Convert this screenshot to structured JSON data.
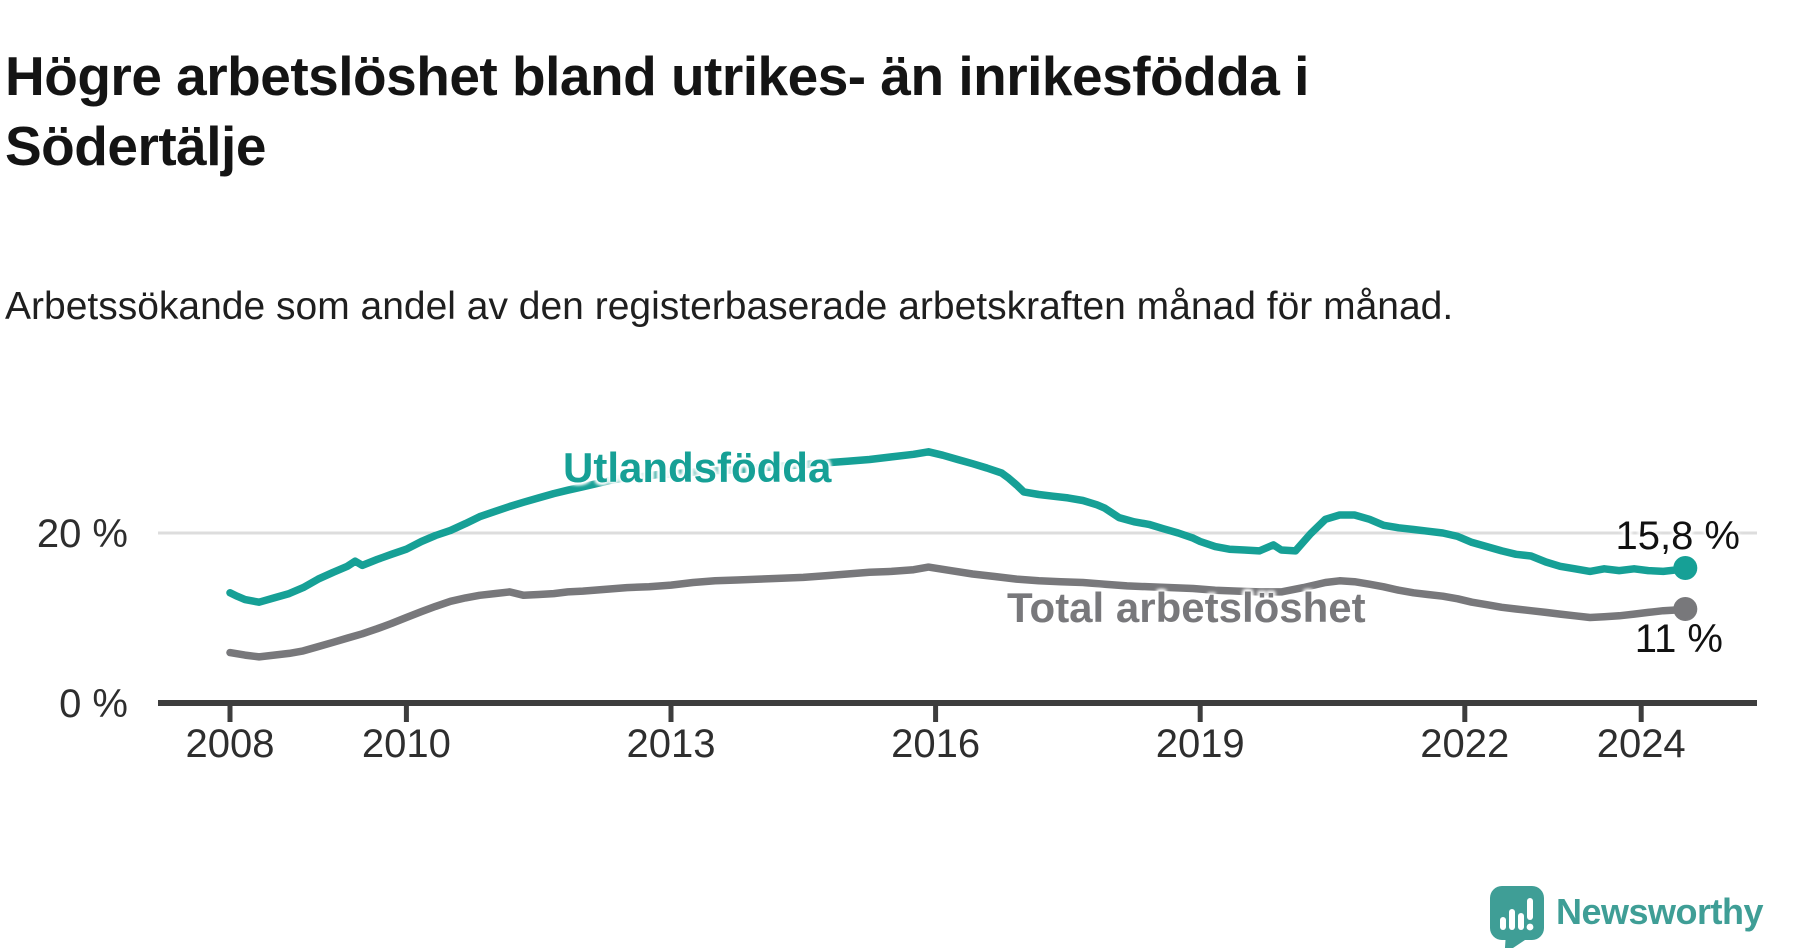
{
  "header": {
    "title": "Högre arbetslöshet bland utrikes- än inrikesfödda i Södertälje",
    "subtitle": "Arbetssökande som andel av den registerbaserade arbetskraften månad för månad."
  },
  "footer": {
    "brand": "Newsworthy"
  },
  "colors": {
    "series1": "#16a096",
    "series2": "#78787b",
    "axis": "#3d3d3d",
    "gridline": "#dddddd",
    "logo": "#3f9e96"
  },
  "chart_data": {
    "type": "line",
    "title": "Högre arbetslöshet bland utrikes- än inrikesfödda i Södertälje",
    "subtitle": "Arbetssökande som andel av den registerbaserade arbetskraften månad för månad.",
    "x_axis": {
      "ticks": [
        2008,
        2010,
        2013,
        2016,
        2019,
        2022,
        2024
      ],
      "tick_labels": [
        "2008",
        "2010",
        "2013",
        "2016",
        "2019",
        "2022",
        "2024"
      ],
      "range": [
        2007.2,
        2025.3
      ]
    },
    "y_axis": {
      "unit": "%",
      "ticks": [
        0,
        20
      ],
      "tick_labels": [
        "0 %",
        "20 %"
      ],
      "range": [
        0,
        33
      ],
      "gridlines": [
        20
      ]
    },
    "legend_position": "inline-labels",
    "series": [
      {
        "name": "Utlandsfödda",
        "color": "#16a096",
        "end_value": 15.8,
        "end_label": "15,8 %",
        "points": [
          [
            2008.0,
            12.9
          ],
          [
            2008.08,
            12.5
          ],
          [
            2008.17,
            12.1
          ],
          [
            2008.33,
            11.8
          ],
          [
            2008.5,
            12.3
          ],
          [
            2008.67,
            12.8
          ],
          [
            2008.83,
            13.5
          ],
          [
            2009.0,
            14.5
          ],
          [
            2009.17,
            15.3
          ],
          [
            2009.33,
            16.0
          ],
          [
            2009.42,
            16.6
          ],
          [
            2009.5,
            16.1
          ],
          [
            2009.67,
            16.8
          ],
          [
            2009.83,
            17.4
          ],
          [
            2010.0,
            18.0
          ],
          [
            2010.17,
            18.9
          ],
          [
            2010.33,
            19.6
          ],
          [
            2010.5,
            20.2
          ],
          [
            2010.67,
            21.0
          ],
          [
            2010.83,
            21.8
          ],
          [
            2011.0,
            22.4
          ],
          [
            2011.17,
            23.0
          ],
          [
            2011.33,
            23.5
          ],
          [
            2011.5,
            24.0
          ],
          [
            2011.67,
            24.5
          ],
          [
            2011.83,
            24.9
          ],
          [
            2012.0,
            25.3
          ],
          [
            2012.17,
            25.7
          ],
          [
            2012.33,
            26.1
          ],
          [
            2012.5,
            26.4
          ],
          [
            2012.67,
            26.5
          ],
          [
            2012.83,
            26.7
          ],
          [
            2013.0,
            26.8
          ],
          [
            2013.25,
            27.0
          ],
          [
            2013.5,
            27.2
          ],
          [
            2013.75,
            27.3
          ],
          [
            2014.0,
            27.5
          ],
          [
            2014.25,
            27.7
          ],
          [
            2014.5,
            27.9
          ],
          [
            2014.75,
            28.1
          ],
          [
            2015.0,
            28.3
          ],
          [
            2015.25,
            28.5
          ],
          [
            2015.5,
            28.8
          ],
          [
            2015.75,
            29.1
          ],
          [
            2015.92,
            29.4
          ],
          [
            2016.08,
            29.0
          ],
          [
            2016.25,
            28.5
          ],
          [
            2016.42,
            28.0
          ],
          [
            2016.58,
            27.5
          ],
          [
            2016.75,
            26.9
          ],
          [
            2016.83,
            26.3
          ],
          [
            2016.92,
            25.5
          ],
          [
            2017.0,
            24.7
          ],
          [
            2017.17,
            24.4
          ],
          [
            2017.33,
            24.2
          ],
          [
            2017.5,
            24.0
          ],
          [
            2017.67,
            23.7
          ],
          [
            2017.83,
            23.2
          ],
          [
            2017.92,
            22.8
          ],
          [
            2018.08,
            21.7
          ],
          [
            2018.25,
            21.2
          ],
          [
            2018.42,
            20.9
          ],
          [
            2018.58,
            20.4
          ],
          [
            2018.75,
            19.9
          ],
          [
            2018.92,
            19.3
          ],
          [
            2019.0,
            18.9
          ],
          [
            2019.17,
            18.3
          ],
          [
            2019.33,
            18.0
          ],
          [
            2019.5,
            17.9
          ],
          [
            2019.67,
            17.8
          ],
          [
            2019.83,
            18.5
          ],
          [
            2019.92,
            17.9
          ],
          [
            2020.08,
            17.8
          ],
          [
            2020.25,
            19.8
          ],
          [
            2020.42,
            21.5
          ],
          [
            2020.58,
            22.0
          ],
          [
            2020.75,
            22.0
          ],
          [
            2020.92,
            21.5
          ],
          [
            2021.08,
            20.8
          ],
          [
            2021.25,
            20.5
          ],
          [
            2021.42,
            20.3
          ],
          [
            2021.58,
            20.1
          ],
          [
            2021.75,
            19.9
          ],
          [
            2021.92,
            19.5
          ],
          [
            2022.08,
            18.8
          ],
          [
            2022.25,
            18.3
          ],
          [
            2022.42,
            17.8
          ],
          [
            2022.58,
            17.4
          ],
          [
            2022.75,
            17.2
          ],
          [
            2022.92,
            16.5
          ],
          [
            2023.08,
            16.0
          ],
          [
            2023.25,
            15.7
          ],
          [
            2023.42,
            15.4
          ],
          [
            2023.58,
            15.7
          ],
          [
            2023.75,
            15.5
          ],
          [
            2023.92,
            15.7
          ],
          [
            2024.08,
            15.5
          ],
          [
            2024.25,
            15.4
          ],
          [
            2024.42,
            15.6
          ],
          [
            2024.5,
            15.8
          ]
        ]
      },
      {
        "name": "Total arbetslöshet",
        "color": "#78787b",
        "end_value": 11,
        "end_label": "11 %",
        "points": [
          [
            2008.0,
            5.9
          ],
          [
            2008.17,
            5.6
          ],
          [
            2008.33,
            5.4
          ],
          [
            2008.5,
            5.6
          ],
          [
            2008.67,
            5.8
          ],
          [
            2008.83,
            6.1
          ],
          [
            2009.0,
            6.6
          ],
          [
            2009.17,
            7.1
          ],
          [
            2009.33,
            7.6
          ],
          [
            2009.5,
            8.1
          ],
          [
            2009.67,
            8.7
          ],
          [
            2009.83,
            9.3
          ],
          [
            2010.0,
            10.0
          ],
          [
            2010.17,
            10.7
          ],
          [
            2010.33,
            11.3
          ],
          [
            2010.5,
            11.9
          ],
          [
            2010.67,
            12.3
          ],
          [
            2010.83,
            12.6
          ],
          [
            2011.0,
            12.8
          ],
          [
            2011.17,
            13.0
          ],
          [
            2011.33,
            12.6
          ],
          [
            2011.5,
            12.7
          ],
          [
            2011.67,
            12.8
          ],
          [
            2011.83,
            13.0
          ],
          [
            2012.0,
            13.1
          ],
          [
            2012.25,
            13.3
          ],
          [
            2012.5,
            13.5
          ],
          [
            2012.75,
            13.6
          ],
          [
            2013.0,
            13.8
          ],
          [
            2013.25,
            14.1
          ],
          [
            2013.5,
            14.3
          ],
          [
            2013.75,
            14.4
          ],
          [
            2014.0,
            14.5
          ],
          [
            2014.25,
            14.6
          ],
          [
            2014.5,
            14.7
          ],
          [
            2014.75,
            14.9
          ],
          [
            2015.0,
            15.1
          ],
          [
            2015.25,
            15.3
          ],
          [
            2015.5,
            15.4
          ],
          [
            2015.75,
            15.6
          ],
          [
            2015.92,
            15.9
          ],
          [
            2016.17,
            15.5
          ],
          [
            2016.42,
            15.1
          ],
          [
            2016.67,
            14.8
          ],
          [
            2016.92,
            14.5
          ],
          [
            2017.17,
            14.3
          ],
          [
            2017.42,
            14.2
          ],
          [
            2017.67,
            14.1
          ],
          [
            2017.92,
            13.9
          ],
          [
            2018.17,
            13.7
          ],
          [
            2018.42,
            13.6
          ],
          [
            2018.67,
            13.5
          ],
          [
            2018.92,
            13.4
          ],
          [
            2019.17,
            13.2
          ],
          [
            2019.42,
            13.1
          ],
          [
            2019.67,
            13.0
          ],
          [
            2019.92,
            13.0
          ],
          [
            2020.17,
            13.5
          ],
          [
            2020.42,
            14.1
          ],
          [
            2020.58,
            14.3
          ],
          [
            2020.75,
            14.2
          ],
          [
            2020.92,
            13.9
          ],
          [
            2021.08,
            13.6
          ],
          [
            2021.25,
            13.2
          ],
          [
            2021.42,
            12.9
          ],
          [
            2021.58,
            12.7
          ],
          [
            2021.75,
            12.5
          ],
          [
            2021.92,
            12.2
          ],
          [
            2022.08,
            11.8
          ],
          [
            2022.25,
            11.5
          ],
          [
            2022.42,
            11.2
          ],
          [
            2022.58,
            11.0
          ],
          [
            2022.75,
            10.8
          ],
          [
            2022.92,
            10.6
          ],
          [
            2023.08,
            10.4
          ],
          [
            2023.25,
            10.2
          ],
          [
            2023.42,
            10.0
          ],
          [
            2023.58,
            10.1
          ],
          [
            2023.75,
            10.2
          ],
          [
            2023.92,
            10.4
          ],
          [
            2024.08,
            10.6
          ],
          [
            2024.25,
            10.8
          ],
          [
            2024.42,
            10.9
          ],
          [
            2024.5,
            11.0
          ]
        ]
      }
    ]
  }
}
